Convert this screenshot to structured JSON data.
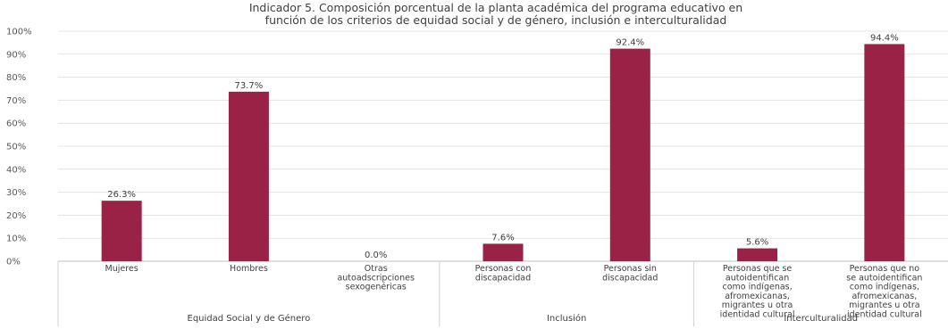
{
  "chart_data": {
    "type": "bar",
    "title_lines": [
      "Indicador 5. Composición porcentual de la planta académica del programa educativo en",
      "función de los criterios de equidad social y de género, inclusión e interculturalidad"
    ],
    "ylim": [
      0,
      100
    ],
    "yticks": [
      "0%",
      "10%",
      "20%",
      "30%",
      "40%",
      "50%",
      "60%",
      "70%",
      "80%",
      "90%",
      "100%"
    ],
    "grid": true,
    "bar_color": "#9B2247",
    "categories": [
      {
        "lines": [
          "Mujeres"
        ],
        "group": 0
      },
      {
        "lines": [
          "Hombres"
        ],
        "group": 0
      },
      {
        "lines": [
          "Otras",
          "autoadscripciones",
          "sexogenéricas"
        ],
        "group": 0
      },
      {
        "lines": [
          "Personas con",
          "discapacidad"
        ],
        "group": 1
      },
      {
        "lines": [
          "Personas sin",
          "discapacidad"
        ],
        "group": 1
      },
      {
        "lines": [
          "Personas que se",
          "autoidentifican",
          "como indígenas,",
          "afromexicanas,",
          "migrantes u otra",
          "identidad cultural"
        ],
        "group": 2
      },
      {
        "lines": [
          "Personas que no",
          "se autoidentifican",
          "como indígenas,",
          "afromexicanas,",
          "migrantes u otra",
          "identidad cultural"
        ],
        "group": 2
      }
    ],
    "values": [
      26.3,
      73.7,
      0.0,
      7.6,
      92.4,
      5.6,
      94.4
    ],
    "data_labels": [
      "26.3%",
      "73.7%",
      "0.0%",
      "7.6%",
      "92.4%",
      "5.6%",
      "94.4%"
    ],
    "groups": [
      "Equidad Social y de Género",
      "Inclusión",
      "Interculturalidad"
    ]
  }
}
